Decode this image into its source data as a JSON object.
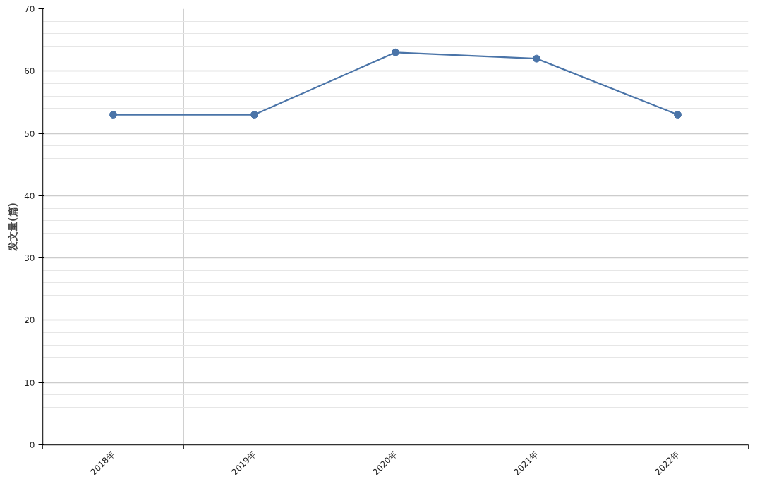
{
  "chart_data": {
    "type": "line",
    "ylabel": "发文量(篇)",
    "categories": [
      "2018年",
      "2019年",
      "2020年",
      "2021年",
      "2022年"
    ],
    "series": [
      {
        "color": "#4a74a8",
        "values": [
          53,
          53,
          63,
          62,
          53
        ]
      }
    ],
    "ylim": [
      0,
      70
    ],
    "yticks": [
      0,
      10,
      20,
      30,
      40,
      50,
      60,
      70
    ],
    "grid": true,
    "marker": "circle",
    "line_style": "solid"
  }
}
